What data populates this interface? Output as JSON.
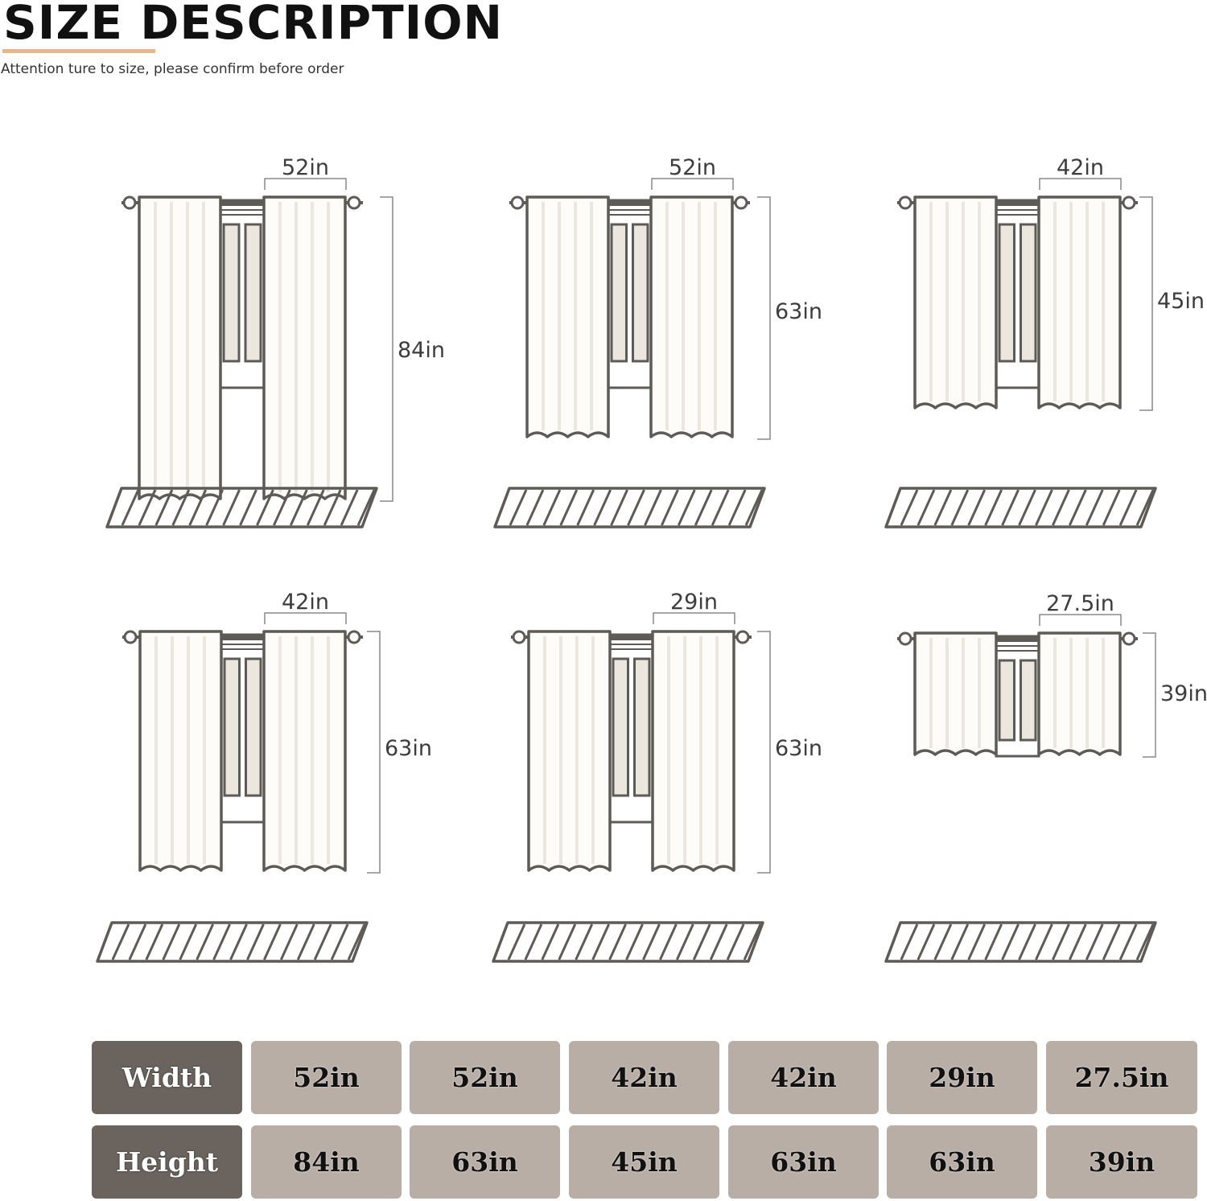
{
  "header": {
    "title": "SIZE DESCRIPTION",
    "subtitle": "Attention ture to size, please confirm before order",
    "accent_color": "#e9b884"
  },
  "panels": [
    {
      "width": "52in",
      "height": "84in"
    },
    {
      "width": "52in",
      "height": "63in"
    },
    {
      "width": "42in",
      "height": "45in"
    },
    {
      "width": "42in",
      "height": "63in"
    },
    {
      "width": "29in",
      "height": "63in"
    },
    {
      "width": "27.5in",
      "height": "39in"
    }
  ],
  "table": {
    "width_label": "Width",
    "height_label": "Height",
    "widths": [
      "52in",
      "52in",
      "42in",
      "42in",
      "29in",
      "27.5in"
    ],
    "heights": [
      "84in",
      "63in",
      "45in",
      "63in",
      "63in",
      "39in"
    ],
    "label_color": "#6b645e",
    "cell_color": "#b8aea6"
  },
  "colors": {
    "line": "#5e5a55",
    "curtain_fill": "#fdfcf9",
    "pleat": "#ebe7df"
  }
}
